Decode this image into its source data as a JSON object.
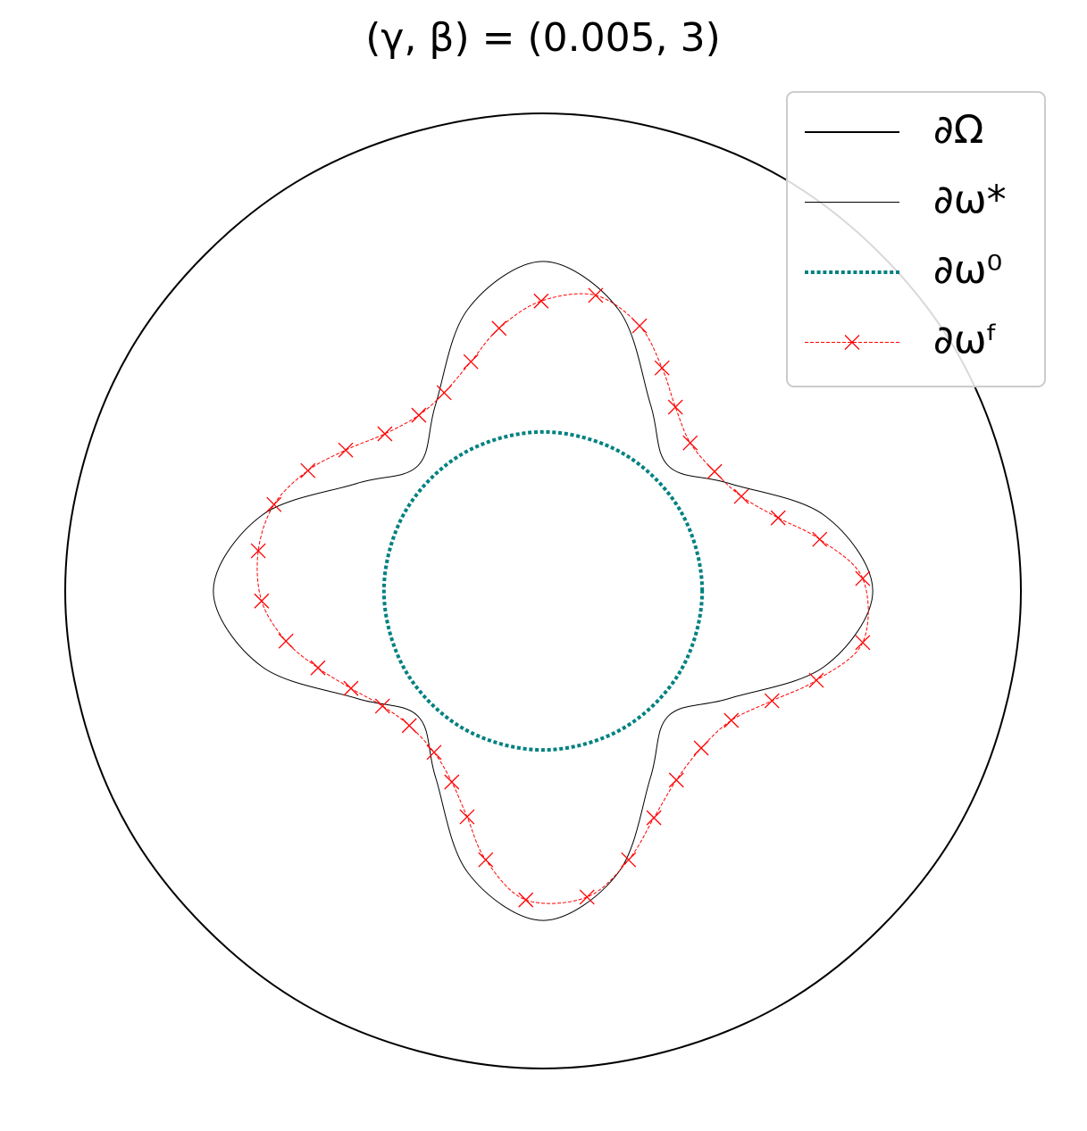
{
  "chart_data": {
    "type": "curves",
    "title": "(γ, β) = (0.005, 3)",
    "legend": "upper right",
    "series": [
      {
        "name": "∂Ω",
        "color": "#000000",
        "style": "solid",
        "width": 2,
        "x": [
          1,
          0.866,
          0.5,
          0,
          -0.5,
          -0.866,
          -1,
          -0.866,
          -0.5,
          0,
          0.5,
          0.866
        ],
        "y": [
          0,
          0.5,
          0.866,
          1,
          0.866,
          0.5,
          0,
          -0.5,
          -0.866,
          -1,
          -0.866,
          -0.5
        ]
      },
      {
        "name": "∂ω*",
        "color": "#000000",
        "style": "solid",
        "width": 1,
        "x": [
          0.69,
          0.589,
          0.39,
          0.262,
          0.225,
          0.158,
          0,
          -0.158,
          -0.225,
          -0.262,
          -0.39,
          -0.589,
          -0.69,
          -0.589,
          -0.39,
          -0.262,
          -0.225,
          -0.158,
          0,
          0.158,
          0.225,
          0.262,
          0.39,
          0.589
        ],
        "y": [
          0,
          0.158,
          0.225,
          0.262,
          0.39,
          0.589,
          0.69,
          0.589,
          0.39,
          0.262,
          0.225,
          0.158,
          0,
          -0.158,
          -0.225,
          -0.262,
          -0.39,
          -0.589,
          -0.69,
          -0.589,
          -0.39,
          -0.262,
          -0.225,
          -0.158
        ]
      },
      {
        "name": "∂ω⁰",
        "color": "#008080",
        "style": "dotted",
        "width": 4,
        "x": [
          0.333,
          0.288,
          0.167,
          0,
          -0.167,
          -0.288,
          -0.333,
          -0.288,
          -0.167,
          0,
          0.167,
          0.288
        ],
        "y": [
          0,
          0.167,
          0.288,
          0.333,
          0.288,
          0.167,
          0,
          -0.167,
          -0.288,
          -0.333,
          -0.288,
          -0.167
        ]
      },
      {
        "name": "∂ωᶠ",
        "color": "#ff0000",
        "style": "dashed",
        "width": 1,
        "marker": "x",
        "x": [
          0.669,
          0.579,
          0.492,
          0.415,
          0.359,
          0.308,
          0.277,
          0.249,
          0.202,
          0.11,
          -0.004,
          -0.092,
          -0.151,
          -0.207,
          -0.26,
          -0.331,
          -0.413,
          -0.492,
          -0.563,
          -0.596,
          -0.589,
          -0.538,
          -0.471,
          -0.402,
          -0.336,
          -0.28,
          -0.228,
          -0.191,
          -0.159,
          -0.12,
          -0.036,
          0.092,
          0.179,
          0.232,
          0.279,
          0.331,
          0.394,
          0.479,
          0.572,
          0.669
        ],
        "y": [
          0.026,
          0.108,
          0.153,
          0.198,
          0.25,
          0.31,
          0.385,
          0.467,
          0.555,
          0.619,
          0.607,
          0.55,
          0.48,
          0.415,
          0.368,
          0.329,
          0.295,
          0.252,
          0.181,
          0.084,
          -0.021,
          -0.105,
          -0.161,
          -0.204,
          -0.241,
          -0.282,
          -0.338,
          -0.4,
          -0.473,
          -0.563,
          -0.647,
          -0.641,
          -0.563,
          -0.475,
          -0.396,
          -0.329,
          -0.271,
          -0.23,
          -0.187,
          -0.108
        ]
      }
    ]
  }
}
